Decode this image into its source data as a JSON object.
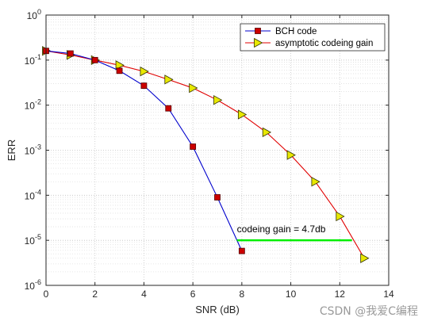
{
  "chart_data": {
    "type": "line",
    "xlabel": "SNR (dB)",
    "ylabel": "ERR",
    "xlim": [
      0,
      14
    ],
    "ylim": [
      1e-06,
      1
    ],
    "yscale": "log",
    "xticks": [
      "0",
      "2",
      "4",
      "6",
      "8",
      "10",
      "12",
      "14"
    ],
    "yticks": [
      {
        "base": "10",
        "exp": "-6"
      },
      {
        "base": "10",
        "exp": "-5"
      },
      {
        "base": "10",
        "exp": "-4"
      },
      {
        "base": "10",
        "exp": "-3"
      },
      {
        "base": "10",
        "exp": "-2"
      },
      {
        "base": "10",
        "exp": "-1"
      },
      {
        "base": "10",
        "exp": "0"
      }
    ],
    "grid": true,
    "legend_position": "top-right",
    "series": [
      {
        "name": "BCH code",
        "color": "#0000cc",
        "marker": "square",
        "marker_color": "#cc0000",
        "x": [
          0,
          1,
          2,
          3,
          4,
          5,
          6,
          7,
          8
        ],
        "y": [
          0.16,
          0.14,
          0.1,
          0.058,
          0.027,
          0.0085,
          0.0012,
          9e-05,
          5.8e-06
        ]
      },
      {
        "name": "asymptotic codeing gain",
        "color": "#e00000",
        "marker": "triangle-right",
        "marker_color": "#e8e800",
        "x": [
          0,
          1,
          2,
          3,
          4,
          5,
          6,
          7,
          8,
          9,
          10,
          11,
          12,
          13
        ],
        "y": [
          0.16,
          0.13,
          0.1,
          0.077,
          0.056,
          0.037,
          0.024,
          0.013,
          0.0062,
          0.0025,
          0.00078,
          0.0002,
          3.4e-05,
          4e-06
        ]
      }
    ],
    "annotations": [
      {
        "text": "codeing gain = 4.7db",
        "x": 7.8,
        "y": 1.5e-05
      },
      {
        "type": "hline",
        "x1": 7.8,
        "x2": 12.5,
        "y": 1e-05,
        "color": "#00ee00"
      }
    ]
  },
  "watermark": "CSDN @我爱C编程"
}
